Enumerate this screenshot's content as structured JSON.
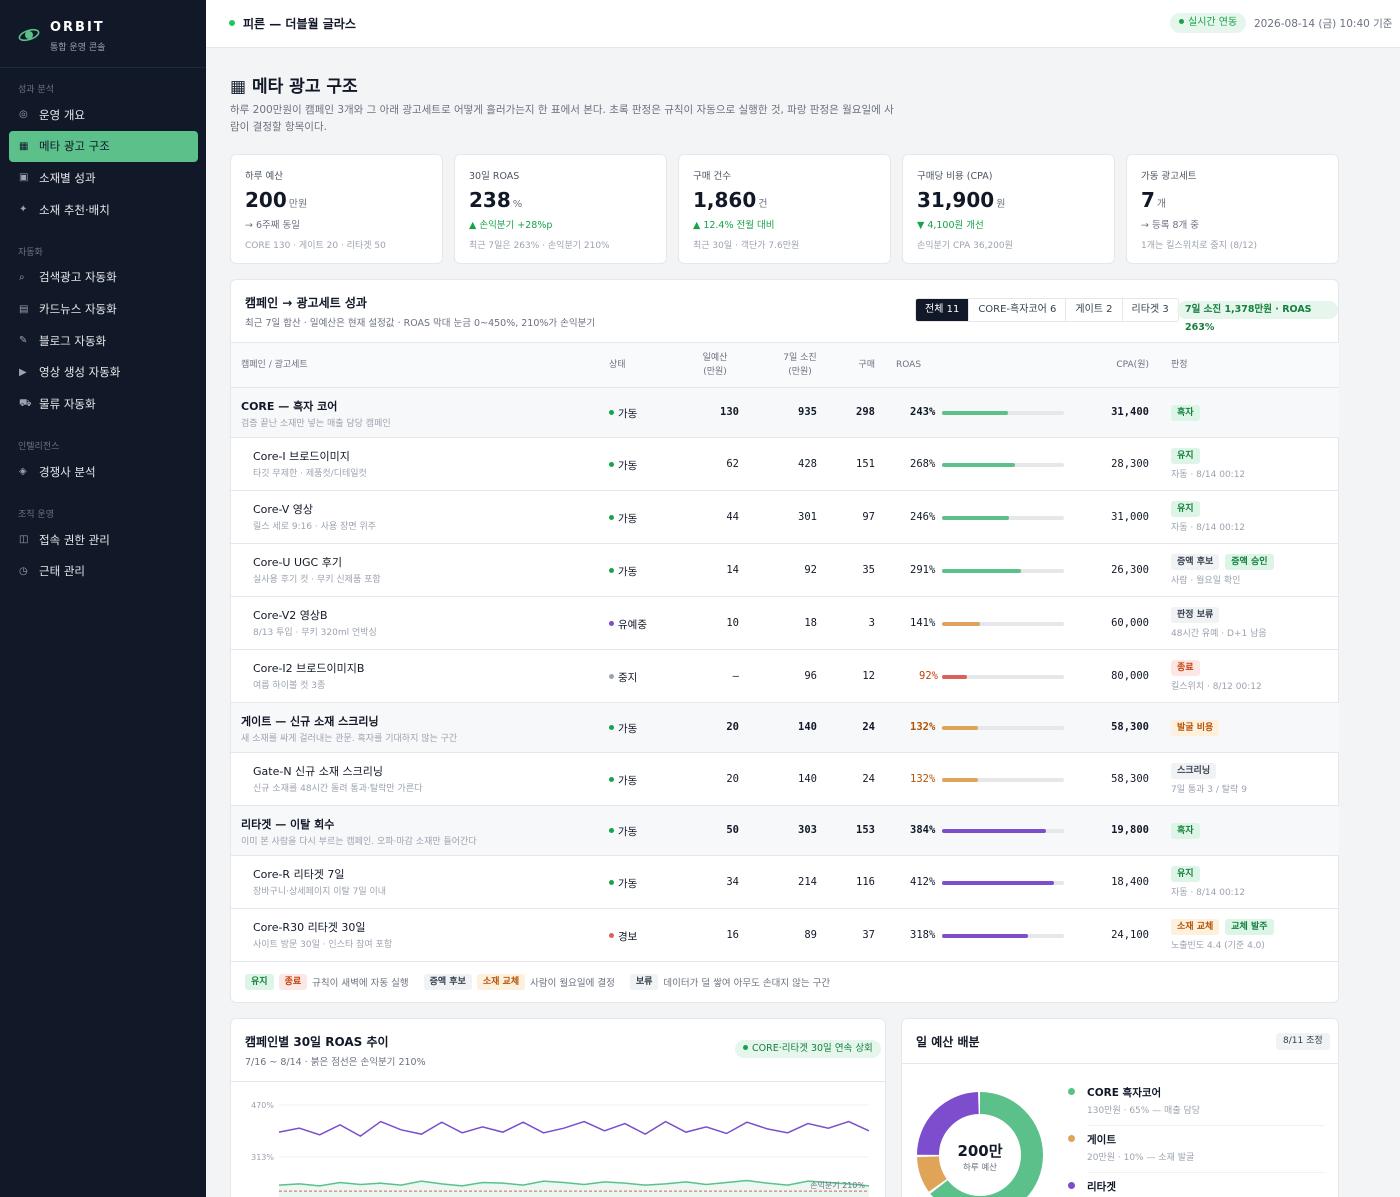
{
  "sidebar": {
    "brand": "ORBIT",
    "brand_sub": "통합 운영 콘솔",
    "groups": [
      {
        "label": "성과 분석",
        "items": [
          {
            "icon": "◎",
            "label": "운영 개요"
          },
          {
            "icon": "▦",
            "label": "메타 광고 구조",
            "active": true
          },
          {
            "icon": "▣",
            "label": "소재별 성과"
          },
          {
            "icon": "✦",
            "label": "소재 추천·배치"
          }
        ]
      },
      {
        "label": "자동화",
        "items": [
          {
            "icon": "⌕",
            "label": "검색광고 자동화"
          },
          {
            "icon": "▤",
            "label": "카드뉴스 자동화"
          },
          {
            "icon": "✎",
            "label": "블로그 자동화"
          },
          {
            "icon": "▶",
            "label": "영상 생성 자동화"
          },
          {
            "icon": "⛟",
            "label": "물류 자동화"
          }
        ]
      },
      {
        "label": "인텔리전스",
        "items": [
          {
            "icon": "◈",
            "label": "경쟁사 분석"
          }
        ]
      },
      {
        "label": "조직 운영",
        "items": [
          {
            "icon": "◫",
            "label": "접속 권한 관리"
          },
          {
            "icon": "◷",
            "label": "근태 관리"
          }
        ]
      }
    ]
  },
  "header": {
    "title": "피른 — 더블월 글라스",
    "live": "실시간 연동",
    "timestamp": "2026-08-14 (금) 10:40 기준"
  },
  "page": {
    "title": "▦ 메타 광고 구조",
    "desc": "하루 200만원이 캠페인 3개와 그 아래 광고세트로 어떻게 흘러가는지 한 표에서 본다. 초록 판정은 규칙이 자동으로 실행한 것, 파랑 판정은 월요일에 사람이 결정할 항목이다."
  },
  "kpis": [
    {
      "label": "하루 예산",
      "value": "200",
      "unit": "만원",
      "change": "→ 6주째 동일",
      "change_type": "flat",
      "note": "CORE 130 · 게이트 20 · 리타겟 50"
    },
    {
      "label": "30일 ROAS",
      "value": "238",
      "unit": "%",
      "change": "▲ 손익분기 +28%p",
      "change_type": "up",
      "note": "최근 7일은 263% · 손익분기 210%"
    },
    {
      "label": "구매 건수",
      "value": "1,860",
      "unit": "건",
      "change": "▲ 12.4% 전월 대비",
      "change_type": "up",
      "note": "최근 30일 · 객단가 7.6만원"
    },
    {
      "label": "구매당 비용 (CPA)",
      "value": "31,900",
      "unit": "원",
      "change": "▼ 4,100원 개선",
      "change_type": "up",
      "note": "손익분기 CPA 36,200원"
    },
    {
      "label": "가동 광고세트",
      "value": "7",
      "unit": "개",
      "change": "→ 등록 8개 중",
      "change_type": "flat",
      "note": "1개는 킬스위치로 중지 (8/12)"
    }
  ],
  "table": {
    "title": "캠페인 → 광고세트 성과",
    "subtitle": "최근 7일 합산 · 일예산은 현재 설정값 · ROAS 막대 눈금 0~450%, 210%가 손익분기",
    "tabs": [
      "전체 11",
      "CORE-흑자코어 6",
      "게이트 2",
      "리타겟 3"
    ],
    "summary": "7일 소진 1,378만원 · ROAS 263%",
    "headers": {
      "name": "캠페인 / 광고세트",
      "status": "상태",
      "budget": "일예산\n(만원)",
      "spend": "7일 소진\n(만원)",
      "purchases": "구매",
      "roas": "ROAS",
      "cpa": "CPA(원)",
      "verdict": "판정"
    },
    "rows": [
      {
        "camp": true,
        "name": "CORE — 흑자 코어",
        "desc": "검증 끝난 소재만 넣는 매출 담당 캠페인",
        "status": "가동",
        "status_color": "#16a34a",
        "budget": "130",
        "spend": "935",
        "purchases": "298",
        "roas": 243,
        "roas_color": "#111827",
        "bar_color": "#5cc08a",
        "cpa": "31,400",
        "badges": [
          {
            "t": "흑자",
            "c": "green"
          }
        ],
        "note": ""
      },
      {
        "name": "Core-I 브로드이미지",
        "desc": "타깃 무제한 · 제품컷/디테일컷",
        "status": "가동",
        "status_color": "#16a34a",
        "budget": "62",
        "spend": "428",
        "purchases": "151",
        "roas": 268,
        "roas_color": "#111827",
        "bar_color": "#5cc08a",
        "cpa": "28,300",
        "badges": [
          {
            "t": "유지",
            "c": "green"
          }
        ],
        "note": "자동 · 8/14 00:12"
      },
      {
        "name": "Core-V 영상",
        "desc": "릴스 세로 9:16 · 사용 장면 위주",
        "status": "가동",
        "status_color": "#16a34a",
        "budget": "44",
        "spend": "301",
        "purchases": "97",
        "roas": 246,
        "roas_color": "#111827",
        "bar_color": "#5cc08a",
        "cpa": "31,000",
        "badges": [
          {
            "t": "유지",
            "c": "green"
          }
        ],
        "note": "자동 · 8/14 00:12"
      },
      {
        "name": "Core-U UGC 후기",
        "desc": "실사용 후기 컷 · 무키 신제품 포함",
        "status": "가동",
        "status_color": "#16a34a",
        "budget": "14",
        "spend": "92",
        "purchases": "35",
        "roas": 291,
        "roas_color": "#111827",
        "bar_color": "#5cc08a",
        "cpa": "26,300",
        "badges": [
          {
            "t": "증액 후보",
            "c": "gray"
          },
          {
            "t": "증액 승인",
            "c": "green"
          }
        ],
        "note": "사람 · 월요일 확인"
      },
      {
        "name": "Core-V2 영상B",
        "desc": "8/13 투입 · 무키 320ml 언박싱",
        "status": "유예중",
        "status_color": "#7c4dcc",
        "budget": "10",
        "spend": "18",
        "purchases": "3",
        "roas": 141,
        "roas_color": "#111827",
        "bar_color": "#e0a458",
        "cpa": "60,000",
        "badges": [
          {
            "t": "판정 보류",
            "c": "gray"
          }
        ],
        "note": "48시간 유예 · D+1 남음"
      },
      {
        "name": "Core-I2 브로드이미지B",
        "desc": "여름 하이볼 컷 3종",
        "status": "중지",
        "status_color": "#9ca3af",
        "budget": "–",
        "spend": "96",
        "purchases": "12",
        "roas": 92,
        "roas_color": "#c2410c",
        "bar_color": "#d9625a",
        "cpa": "80,000",
        "badges": [
          {
            "t": "종료",
            "c": "red"
          }
        ],
        "note": "킬스위치 · 8/12 00:12"
      },
      {
        "camp": true,
        "name": "게이트 — 신규 소재 스크리닝",
        "desc": "새 소재를 싸게 걸러내는 관문. 흑자를 기대하지 않는 구간",
        "status": "가동",
        "status_color": "#16a34a",
        "budget": "20",
        "spend": "140",
        "purchases": "24",
        "roas": 132,
        "roas_color": "#b45309",
        "bar_color": "#e0a458",
        "cpa": "58,300",
        "badges": [
          {
            "t": "발굴 비용",
            "c": "orange"
          }
        ],
        "note": ""
      },
      {
        "name": "Gate-N 신규 소재 스크리닝",
        "desc": "신규 소재를 48시간 돌려 통과·탈락만 가른다",
        "status": "가동",
        "status_color": "#16a34a",
        "budget": "20",
        "spend": "140",
        "purchases": "24",
        "roas": 132,
        "roas_color": "#b45309",
        "bar_color": "#e0a458",
        "cpa": "58,300",
        "badges": [
          {
            "t": "스크리닝",
            "c": "gray"
          }
        ],
        "note": "7일 통과 3 / 탈락 9"
      },
      {
        "camp": true,
        "name": "리타겟 — 이탈 회수",
        "desc": "이미 본 사람을 다시 부르는 캠페인. 오파·마감 소재만 들어간다",
        "status": "가동",
        "status_color": "#16a34a",
        "budget": "50",
        "spend": "303",
        "purchases": "153",
        "roas": 384,
        "roas_color": "#111827",
        "bar_color": "#7c4dcc",
        "cpa": "19,800",
        "badges": [
          {
            "t": "흑자",
            "c": "green"
          }
        ],
        "note": ""
      },
      {
        "name": "Core-R 리타겟 7일",
        "desc": "장바구니·상세페이지 이탈 7일 이내",
        "status": "가동",
        "status_color": "#16a34a",
        "budget": "34",
        "spend": "214",
        "purchases": "116",
        "roas": 412,
        "roas_color": "#111827",
        "bar_color": "#7c4dcc",
        "cpa": "18,400",
        "badges": [
          {
            "t": "유지",
            "c": "green"
          }
        ],
        "note": "자동 · 8/14 00:12"
      },
      {
        "name": "Core-R30 리타겟 30일",
        "desc": "사이트 방문 30일 · 인스타 참여 포함",
        "status": "경보",
        "status_color": "#d9625a",
        "budget": "16",
        "spend": "89",
        "purchases": "37",
        "roas": 318,
        "roas_color": "#111827",
        "bar_color": "#7c4dcc",
        "cpa": "24,100",
        "badges": [
          {
            "t": "소재 교체",
            "c": "orange"
          },
          {
            "t": "교체 발주",
            "c": "green"
          }
        ],
        "note": "노출빈도 4.4 (기준 4.0)"
      }
    ],
    "legend": [
      {
        "badges": [
          {
            "t": "유지",
            "c": "green"
          },
          {
            "t": "종료",
            "c": "red"
          }
        ],
        "text": "규칙이 새벽에 자동 실행"
      },
      {
        "badges": [
          {
            "t": "증액 후보",
            "c": "gray"
          },
          {
            "t": "소재 교체",
            "c": "orange"
          }
        ],
        "text": "사람이 월요일에 결정"
      },
      {
        "badges": [
          {
            "t": "보류",
            "c": "gray"
          }
        ],
        "text": "데이터가 덜 쌓여 아무도 손대지 않는 구간"
      }
    ]
  },
  "trend": {
    "title": "캠페인별 30일 ROAS 추이",
    "subtitle": "7/16 ~ 8/14 · 붉은 점선은 손익분기 210%",
    "pill": "CORE·리타겟 30일 연속 상회",
    "tick_top": "470%",
    "tick_mid": "313%",
    "breakeven_label": "손익분기 210%"
  },
  "chart_data": {
    "type": "line",
    "title": "캠페인별 30일 ROAS 추이",
    "xlabel": "",
    "ylabel": "",
    "x_range": [
      "7/16",
      "8/14"
    ],
    "ylim": [
      160,
      470
    ],
    "ticks": [
      470,
      313
    ],
    "breakeven": 210,
    "series": [
      {
        "color": "#7c4dcc",
        "values": [
          388,
          400,
          380,
          410,
          376,
          420,
          395,
          382,
          418,
          386,
          404,
          388,
          418,
          386,
          400,
          420,
          392,
          414,
          382,
          420,
          388,
          404,
          384,
          418,
          398,
          386,
          414,
          400,
          420,
          392
        ]
      },
      {
        "color": "#5cc08a",
        "values": [
          228,
          232,
          226,
          236,
          230,
          234,
          228,
          240,
          232,
          226,
          236,
          234,
          228,
          240,
          236,
          230,
          238,
          234,
          228,
          232,
          238,
          230,
          236,
          242,
          234,
          228,
          240,
          236,
          232,
          226
        ]
      }
    ]
  },
  "donut": {
    "title": "일 예산 배분",
    "badge": "8/11 조정",
    "center": "200만",
    "center_sub": "하루 예산",
    "items": [
      {
        "name": "CORE 흑자코어",
        "desc": "130만원 · 65% — 매출 담당",
        "value": 65,
        "color": "#5cc08a"
      },
      {
        "name": "게이트",
        "desc": "20만원 · 10% — 소재 발굴",
        "value": 10,
        "color": "#e0a458"
      },
      {
        "name": "리타겟",
        "desc": "",
        "value": 25,
        "color": "#7c4dcc"
      }
    ]
  }
}
